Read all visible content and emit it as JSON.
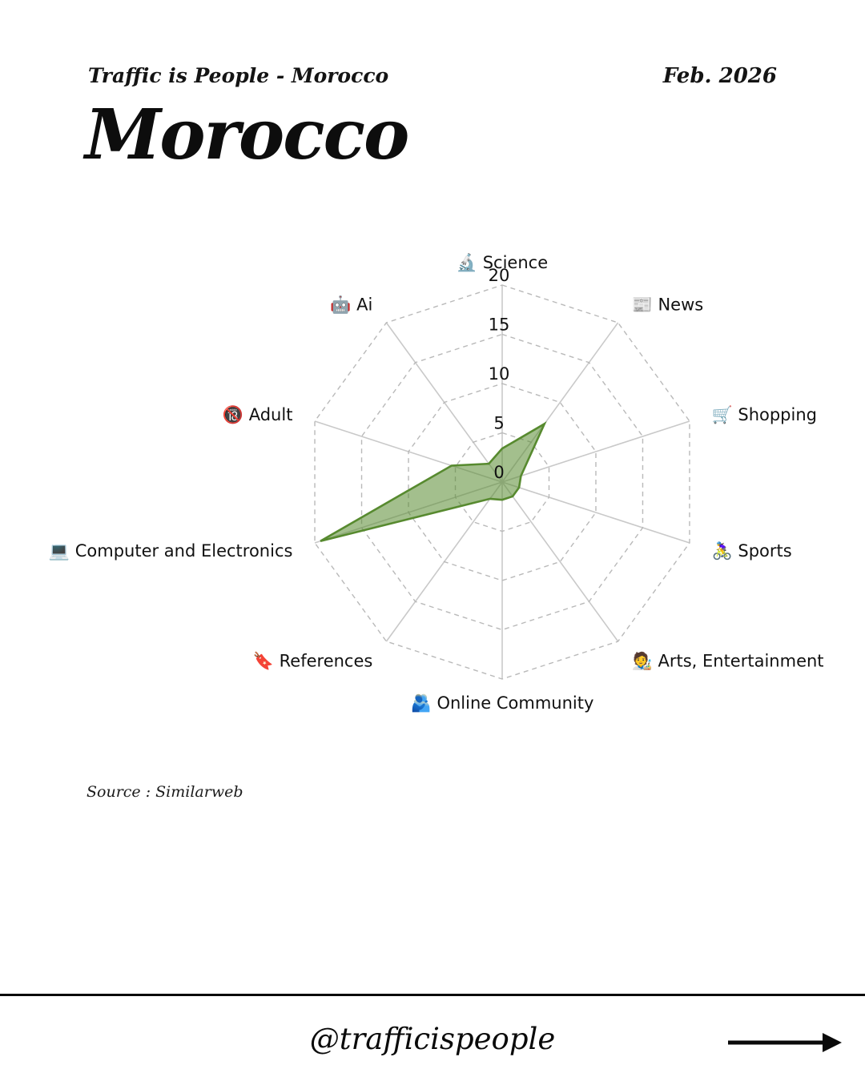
{
  "header": {
    "brand": "Traffic is People - Morocco",
    "date": "Feb. 2026"
  },
  "title": "Morocco",
  "source": "Source : Similarweb",
  "footer": {
    "handle": "@trafficispeople",
    "arrow_icon": "right-arrow"
  },
  "colors": {
    "polygon_fill": "rgba(87,138,47,0.55)",
    "polygon_stroke": "#578a2f",
    "spoke": "#c9c9c9",
    "ring": "#b9b9b9",
    "label_text": "#111111",
    "tick_text": "#111111"
  },
  "chart_data": {
    "type": "radar",
    "title": "Morocco traffic share by category",
    "categories": [
      {
        "label": "Science",
        "emoji": "🔬",
        "icon": "microscope-icon"
      },
      {
        "label": "News",
        "emoji": "📰",
        "icon": "newspaper-icon"
      },
      {
        "label": "Shopping",
        "emoji": "🛒",
        "icon": "shopping-cart-icon"
      },
      {
        "label": "Sports",
        "emoji": "🚴‍♀️",
        "icon": "woman-biking-icon"
      },
      {
        "label": "Arts, Entertainment",
        "emoji": "🧑‍🎨",
        "icon": "artist-icon"
      },
      {
        "label": "Online Community",
        "emoji": "🫂",
        "icon": "people-hugging-icon"
      },
      {
        "label": "References",
        "emoji": "🔖",
        "icon": "bookmark-icon"
      },
      {
        "label": "Computer and Electronics",
        "emoji": "💻",
        "icon": "laptop-icon"
      },
      {
        "label": "Adult",
        "emoji": "🔞",
        "icon": "no-under-18-icon"
      },
      {
        "label": "Ai",
        "emoji": "🤖",
        "icon": "robot-icon"
      }
    ],
    "values": [
      3.4,
      7.3,
      2.0,
      1.8,
      1.8,
      1.8,
      2.1,
      19.4,
      5.4,
      2.3
    ],
    "ticks": [
      0,
      5,
      10,
      15,
      20
    ],
    "rmax": 20,
    "grid": "dashed-rings-solid-spokes",
    "legend": "none"
  }
}
